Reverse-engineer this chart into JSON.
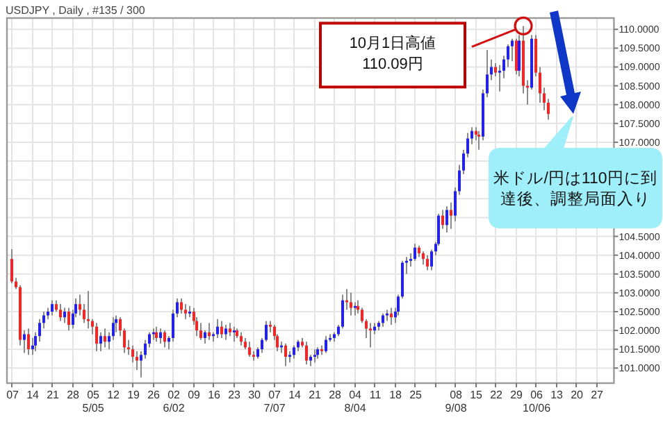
{
  "chart_data": {
    "type": "candlestick",
    "title": "USDJPY , Daily , #135 / 300",
    "categories": [
      "07",
      null,
      null,
      null,
      null,
      "14",
      null,
      null,
      null,
      null,
      "21",
      null,
      null,
      null,
      null,
      "28",
      null,
      null,
      null,
      null,
      "05\n5/05",
      null,
      null,
      null,
      null,
      "12",
      null,
      null,
      null,
      null,
      "19",
      null,
      null,
      null,
      null,
      "26",
      null,
      null,
      null,
      null,
      "02\n6/02",
      null,
      null,
      null,
      null,
      "09",
      null,
      null,
      null,
      null,
      "16",
      null,
      null,
      null,
      null,
      "23",
      null,
      null,
      null,
      null,
      "30",
      null,
      null,
      null,
      null,
      "07\n7/07",
      null,
      null,
      null,
      null,
      "14",
      null,
      null,
      null,
      null,
      "21",
      null,
      null,
      null,
      null,
      "28",
      null,
      null,
      null,
      null,
      "04\n8/04",
      null,
      null,
      null,
      null,
      "11",
      null,
      null,
      null,
      null,
      "18",
      null,
      null,
      null,
      null,
      "25",
      null,
      null,
      null,
      null,
      null,
      null,
      null,
      null,
      null,
      "08\n9/08",
      null,
      null,
      null,
      null,
      "15",
      null,
      null,
      null,
      null,
      "22",
      null,
      null,
      null,
      null,
      "29",
      null,
      null,
      null,
      null,
      "06\n10/06",
      null,
      null,
      null,
      null,
      "13",
      null,
      null,
      null,
      null,
      "20",
      null,
      null,
      null,
      null,
      "27",
      null,
      null,
      null,
      null
    ],
    "ohlc": [
      [
        103.9,
        104.16,
        103.25,
        103.3
      ],
      [
        103.3,
        103.4,
        103.1,
        103.15
      ],
      [
        103.15,
        103.2,
        101.6,
        101.75
      ],
      [
        101.75,
        102.0,
        101.4,
        101.9
      ],
      [
        101.9,
        102.05,
        101.35,
        101.5
      ],
      [
        101.5,
        101.8,
        101.35,
        101.6
      ],
      [
        101.6,
        101.95,
        101.45,
        101.85
      ],
      [
        101.85,
        102.3,
        101.7,
        102.2
      ],
      [
        102.2,
        102.5,
        102.05,
        102.4
      ],
      [
        102.4,
        102.6,
        102.3,
        102.5
      ],
      [
        102.5,
        102.8,
        102.4,
        102.7
      ],
      [
        102.7,
        102.8,
        102.5,
        102.55
      ],
      [
        102.55,
        102.7,
        102.25,
        102.35
      ],
      [
        102.35,
        102.6,
        102.2,
        102.5
      ],
      [
        102.5,
        102.6,
        102.0,
        102.15
      ],
      [
        102.15,
        102.55,
        102.05,
        102.45
      ],
      [
        102.45,
        102.85,
        102.35,
        102.7
      ],
      [
        102.7,
        102.95,
        102.4,
        102.55
      ],
      [
        102.55,
        102.7,
        102.2,
        102.3
      ],
      [
        102.3,
        103.05,
        102.05,
        102.25
      ],
      [
        102.25,
        102.3,
        101.9,
        102.1
      ],
      [
        102.1,
        102.2,
        101.45,
        101.65
      ],
      [
        101.65,
        101.95,
        101.45,
        101.85
      ],
      [
        101.85,
        102.05,
        101.55,
        101.7
      ],
      [
        101.7,
        101.95,
        101.5,
        101.85
      ],
      [
        101.85,
        102.35,
        101.75,
        102.2
      ],
      [
        102.2,
        102.4,
        101.95,
        102.3
      ],
      [
        102.3,
        102.35,
        101.85,
        102.0
      ],
      [
        102.0,
        102.05,
        101.4,
        101.55
      ],
      [
        101.55,
        101.75,
        101.35,
        101.5
      ],
      [
        101.5,
        101.6,
        101.15,
        101.3
      ],
      [
        101.3,
        101.45,
        100.95,
        101.2
      ],
      [
        101.2,
        101.45,
        100.75,
        101.35
      ],
      [
        101.35,
        101.75,
        101.25,
        101.65
      ],
      [
        101.65,
        101.95,
        101.55,
        101.9
      ],
      [
        101.9,
        102.05,
        101.75,
        101.95
      ],
      [
        101.95,
        102.1,
        101.7,
        101.8
      ],
      [
        101.8,
        102.05,
        101.65,
        101.95
      ],
      [
        101.95,
        102.0,
        101.55,
        101.7
      ],
      [
        101.7,
        101.85,
        101.5,
        101.8
      ],
      [
        101.8,
        102.55,
        101.7,
        102.45
      ],
      [
        102.45,
        102.85,
        102.35,
        102.75
      ],
      [
        102.75,
        102.85,
        102.45,
        102.55
      ],
      [
        102.55,
        102.7,
        102.3,
        102.45
      ],
      [
        102.45,
        102.65,
        102.35,
        102.5
      ],
      [
        102.5,
        102.6,
        102.15,
        102.25
      ],
      [
        102.25,
        102.35,
        101.85,
        102.0
      ],
      [
        102.0,
        102.2,
        101.75,
        101.8
      ],
      [
        101.8,
        102.0,
        101.65,
        101.95
      ],
      [
        101.95,
        102.2,
        101.75,
        101.85
      ],
      [
        101.85,
        101.95,
        101.7,
        101.9
      ],
      [
        101.9,
        102.3,
        101.8,
        102.1
      ],
      [
        102.1,
        102.25,
        101.8,
        101.9
      ],
      [
        101.9,
        102.15,
        101.75,
        102.05
      ],
      [
        102.05,
        102.2,
        101.85,
        101.95
      ],
      [
        101.95,
        102.1,
        101.7,
        102.0
      ],
      [
        102.0,
        102.05,
        101.8,
        101.85
      ],
      [
        101.85,
        101.95,
        101.6,
        101.7
      ],
      [
        101.7,
        101.8,
        101.5,
        101.55
      ],
      [
        101.55,
        101.7,
        101.3,
        101.35
      ],
      [
        101.35,
        101.45,
        101.2,
        101.3
      ],
      [
        101.3,
        101.55,
        101.25,
        101.5
      ],
      [
        101.5,
        101.8,
        101.4,
        101.75
      ],
      [
        101.75,
        102.25,
        101.7,
        102.15
      ],
      [
        102.15,
        102.25,
        101.95,
        102.1
      ],
      [
        102.1,
        102.15,
        101.75,
        101.85
      ],
      [
        101.85,
        101.9,
        101.45,
        101.55
      ],
      [
        101.55,
        101.7,
        101.4,
        101.6
      ],
      [
        101.6,
        101.65,
        101.05,
        101.3
      ],
      [
        101.3,
        101.45,
        101.15,
        101.35
      ],
      [
        101.35,
        101.6,
        101.25,
        101.55
      ],
      [
        101.55,
        101.75,
        101.45,
        101.7
      ],
      [
        101.7,
        101.8,
        101.55,
        101.6
      ],
      [
        101.6,
        101.7,
        101.1,
        101.2
      ],
      [
        101.2,
        101.35,
        101.05,
        101.3
      ],
      [
        101.3,
        101.5,
        101.15,
        101.35
      ],
      [
        101.35,
        101.55,
        101.25,
        101.5
      ],
      [
        101.5,
        101.6,
        101.35,
        101.45
      ],
      [
        101.45,
        101.85,
        101.4,
        101.75
      ],
      [
        101.75,
        101.9,
        101.7,
        101.8
      ],
      [
        101.8,
        101.95,
        101.7,
        101.9
      ],
      [
        101.9,
        102.15,
        101.85,
        102.1
      ],
      [
        102.1,
        102.95,
        102.05,
        102.8
      ],
      [
        102.8,
        103.1,
        102.55,
        102.75
      ],
      [
        102.75,
        103.0,
        102.4,
        102.6
      ],
      [
        102.6,
        102.75,
        102.4,
        102.65
      ],
      [
        102.65,
        102.8,
        102.45,
        102.55
      ],
      [
        102.55,
        102.6,
        102.2,
        102.25
      ],
      [
        102.25,
        102.3,
        101.8,
        102.05
      ],
      [
        102.05,
        102.2,
        101.55,
        102.0
      ],
      [
        102.0,
        102.2,
        101.9,
        102.1
      ],
      [
        102.1,
        102.25,
        102.0,
        102.2
      ],
      [
        102.2,
        102.45,
        102.1,
        102.4
      ],
      [
        102.4,
        102.55,
        102.25,
        102.45
      ],
      [
        102.45,
        102.6,
        102.15,
        102.35
      ],
      [
        102.35,
        102.6,
        102.2,
        102.5
      ],
      [
        102.5,
        102.95,
        102.4,
        102.9
      ],
      [
        102.9,
        103.85,
        102.85,
        103.8
      ],
      [
        103.8,
        103.95,
        103.5,
        103.85
      ],
      [
        103.85,
        104.05,
        103.7,
        103.9
      ],
      [
        103.9,
        104.3,
        103.85,
        104.2
      ],
      [
        104.2,
        104.25,
        103.95,
        104.05
      ],
      [
        104.05,
        104.1,
        103.75,
        103.9
      ],
      [
        103.9,
        104.0,
        103.6,
        103.7
      ],
      [
        103.7,
        104.15,
        103.6,
        104.1
      ],
      [
        104.1,
        104.35,
        104.0,
        104.3
      ],
      [
        104.3,
        105.1,
        104.25,
        105.05
      ],
      [
        105.05,
        105.2,
        104.7,
        104.8
      ],
      [
        104.8,
        105.3,
        104.6,
        105.2
      ],
      [
        105.2,
        105.4,
        104.7,
        105.05
      ],
      [
        105.05,
        105.8,
        104.9,
        105.7
      ],
      [
        105.7,
        106.4,
        105.6,
        106.25
      ],
      [
        106.25,
        106.8,
        106.15,
        106.7
      ],
      [
        106.7,
        107.25,
        106.6,
        107.1
      ],
      [
        107.1,
        107.4,
        106.95,
        107.3
      ],
      [
        107.3,
        107.4,
        107.05,
        107.2
      ],
      [
        107.2,
        107.3,
        106.8,
        107.15
      ],
      [
        107.15,
        108.4,
        107.05,
        108.3
      ],
      [
        108.3,
        109.45,
        108.2,
        108.8
      ],
      [
        108.8,
        109.2,
        108.65,
        109.0
      ],
      [
        109.0,
        109.1,
        108.75,
        108.85
      ],
      [
        108.85,
        109.05,
        108.35,
        108.9
      ],
      [
        108.9,
        109.3,
        108.7,
        109.2
      ],
      [
        109.2,
        109.6,
        109.0,
        109.55
      ],
      [
        109.55,
        109.75,
        109.15,
        109.7
      ],
      [
        109.7,
        109.75,
        108.8,
        108.9
      ],
      [
        108.9,
        109.85,
        108.75,
        109.7
      ],
      [
        109.7,
        110.09,
        108.3,
        108.5
      ],
      [
        108.5,
        108.65,
        108.0,
        108.45
      ],
      [
        108.45,
        109.85,
        108.4,
        109.75
      ],
      [
        109.75,
        109.85,
        108.75,
        108.85
      ],
      [
        108.85,
        109.0,
        108.05,
        108.3
      ],
      [
        108.3,
        108.45,
        107.85,
        108.05
      ],
      [
        108.05,
        108.15,
        107.6,
        107.75
      ],
      null,
      null,
      null,
      null,
      null,
      null,
      null,
      null,
      null,
      null,
      null,
      null,
      null,
      null,
      null,
      null
    ],
    "colors": [
      "#ff2020",
      "#ff2020",
      "#ff2020",
      "#2020ff",
      "#ff2020",
      "#2020ff",
      "#2020ff",
      "#2020ff",
      "#2020ff",
      "#2020ff",
      "#2020ff",
      "#ff2020",
      "#ff2020",
      "#2020ff",
      "#ff2020",
      "#2020ff",
      "#2020ff",
      "#ff2020",
      "#ff2020",
      "#ff2020",
      "#ff2020",
      "#ff2020",
      "#2020ff",
      "#ff2020",
      "#2020ff",
      "#2020ff",
      "#2020ff",
      "#ff2020",
      "#ff2020",
      "#ff2020",
      "#ff2020",
      "#ff2020",
      "#2020ff",
      "#2020ff",
      "#2020ff",
      "#2020ff",
      "#ff2020",
      "#2020ff",
      "#ff2020",
      "#2020ff",
      "#2020ff",
      "#2020ff",
      "#ff2020",
      "#ff2020",
      "#2020ff",
      "#ff2020",
      "#ff2020",
      "#ff2020",
      "#2020ff",
      "#ff2020",
      "#2020ff",
      "#2020ff",
      "#ff2020",
      "#2020ff",
      "#ff2020",
      "#2020ff",
      "#ff2020",
      "#ff2020",
      "#ff2020",
      "#ff2020",
      "#ff2020",
      "#2020ff",
      "#2020ff",
      "#2020ff",
      "#ff2020",
      "#ff2020",
      "#ff2020",
      "#2020ff",
      "#ff2020",
      "#2020ff",
      "#2020ff",
      "#2020ff",
      "#ff2020",
      "#ff2020",
      "#2020ff",
      "#2020ff",
      "#2020ff",
      "#ff2020",
      "#2020ff",
      "#2020ff",
      "#2020ff",
      "#2020ff",
      "#2020ff",
      "#ff2020",
      "#ff2020",
      "#2020ff",
      "#ff2020",
      "#ff2020",
      "#ff2020",
      "#ff2020",
      "#2020ff",
      "#2020ff",
      "#2020ff",
      "#2020ff",
      "#ff2020",
      "#2020ff",
      "#2020ff",
      "#2020ff",
      "#2020ff",
      "#2020ff",
      "#2020ff",
      "#ff2020",
      "#ff2020",
      "#ff2020",
      "#2020ff",
      "#2020ff",
      "#2020ff",
      "#ff2020",
      "#2020ff",
      "#ff2020",
      "#2020ff",
      "#2020ff",
      "#2020ff",
      "#2020ff",
      "#2020ff",
      "#ff2020",
      "#ff2020",
      "#2020ff",
      "#2020ff",
      "#2020ff",
      "#ff2020",
      "#2020ff",
      "#2020ff",
      "#2020ff",
      "#2020ff",
      "#ff2020",
      "#2020ff",
      "#ff2020",
      "#ff2020",
      "#2020ff",
      "#ff2020",
      "#ff2020",
      "#ff2020",
      "#ff2020",
      null,
      null,
      null,
      null,
      null,
      null,
      null,
      null,
      null,
      null,
      null,
      null,
      null,
      null,
      null,
      null
    ],
    "ylim": [
      100.6,
      110.3
    ],
    "yticks": [
      {
        "value": 101,
        "label": "101.0000"
      },
      {
        "value": 101.5,
        "label": "101.5000"
      },
      {
        "value": 102,
        "label": "102.0000"
      },
      {
        "value": 102.5,
        "label": "102.5000"
      },
      {
        "value": 103,
        "label": "103.0000"
      },
      {
        "value": 103.5,
        "label": "103.5000"
      },
      {
        "value": 104,
        "label": "104.0000"
      },
      {
        "value": 104.5,
        "label": "104.5000"
      },
      {
        "value": 105,
        "label": null
      },
      {
        "value": 105.5,
        "label": null
      },
      {
        "value": 106,
        "label": null
      },
      {
        "value": 106.5,
        "label": null
      },
      {
        "value": 107,
        "label": "107.0000"
      },
      {
        "value": 107.5,
        "label": "107.5000"
      },
      {
        "value": 108,
        "label": "108.0000"
      },
      {
        "value": 108.5,
        "label": "108.5000"
      },
      {
        "value": 109,
        "label": "109.0000"
      },
      {
        "value": 109.5,
        "label": "109.5000"
      },
      {
        "value": 110,
        "label": "110.0000"
      }
    ],
    "grid": true,
    "annotations": [
      "10月1日高値\n110.09円",
      "米ドル/円は110円に到達後、調整局面入り"
    ]
  }
}
